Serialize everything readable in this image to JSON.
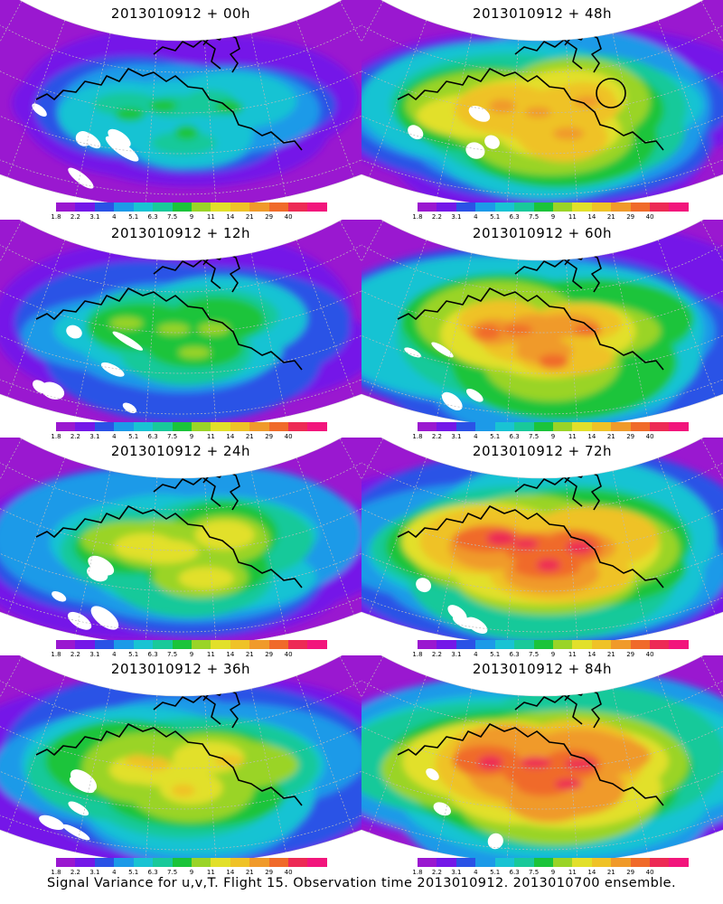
{
  "panels": [
    {
      "id": "p00",
      "title": "2013010912 + 00h",
      "lead": 0,
      "col": 0,
      "row": 0,
      "intensity": 0.45
    },
    {
      "id": "p48",
      "title": "2013010912 + 48h",
      "lead": 48,
      "col": 1,
      "row": 0,
      "intensity": 0.8
    },
    {
      "id": "p12",
      "title": "2013010912 + 12h",
      "lead": 12,
      "col": 0,
      "row": 1,
      "intensity": 0.55
    },
    {
      "id": "p60",
      "title": "2013010912 + 60h",
      "lead": 60,
      "col": 1,
      "row": 1,
      "intensity": 0.85
    },
    {
      "id": "p24",
      "title": "2013010912 + 24h",
      "lead": 24,
      "col": 0,
      "row": 2,
      "intensity": 0.65
    },
    {
      "id": "p72",
      "title": "2013010912 + 72h",
      "lead": 72,
      "col": 1,
      "row": 2,
      "intensity": 0.9
    },
    {
      "id": "p36",
      "title": "2013010912 + 36h",
      "lead": 36,
      "col": 0,
      "row": 3,
      "intensity": 0.72
    },
    {
      "id": "p84",
      "title": "2013010912 + 84h",
      "lead": 84,
      "col": 1,
      "row": 3,
      "intensity": 0.95
    }
  ],
  "colorbar": {
    "colors": [
      "#9a18d0",
      "#7418e8",
      "#2a52e6",
      "#1c9ae8",
      "#19c3d3",
      "#19c99a",
      "#1bc43a",
      "#9ad427",
      "#e2e02a",
      "#efc227",
      "#f09a2a",
      "#f06a2a",
      "#ed2a55",
      "#f2157c"
    ],
    "labels": [
      "1.8",
      "2.2",
      "3.1",
      "4",
      "5.1",
      "6.3",
      "7.5",
      "9",
      "11",
      "14",
      "21",
      "29",
      "40"
    ]
  },
  "caption": "Signal Variance for u,v,T. Flight 15. Observation time 2013010912. 2013010700 ensemble."
}
